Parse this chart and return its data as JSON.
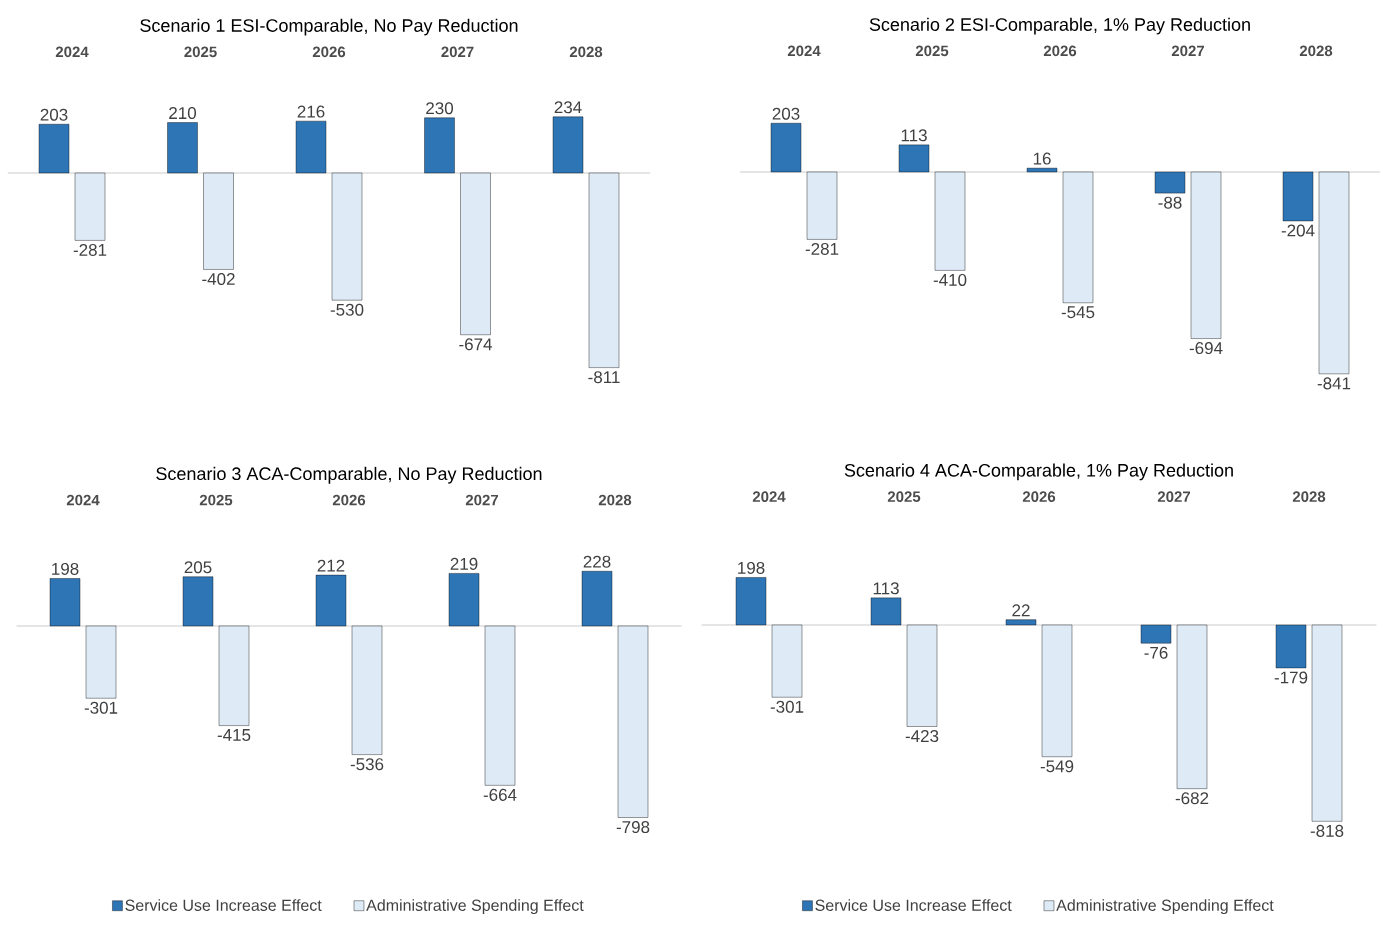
{
  "chart_data": [
    {
      "type": "bar",
      "title": "Scenario 1 ESI-Comparable, No Pay Reduction",
      "categories": [
        "2024",
        "2025",
        "2026",
        "2027",
        "2028"
      ],
      "data_labels": true,
      "series": [
        {
          "color": "#2e75b6",
          "values": [
            203,
            210,
            216,
            230,
            234
          ]
        },
        {
          "color": "#deebf7",
          "values": [
            -281,
            -402,
            -530,
            -674,
            -811
          ]
        }
      ]
    },
    {
      "type": "bar",
      "title": "Scenario 2 ESI-Comparable, 1% Pay Reduction",
      "categories": [
        "2024",
        "2025",
        "2026",
        "2027",
        "2028"
      ],
      "data_labels": true,
      "series": [
        {
          "color": "#2e75b6",
          "values": [
            203,
            113,
            16,
            -88,
            -204
          ]
        },
        {
          "color": "#deebf7",
          "values": [
            -281,
            -410,
            -545,
            -694,
            -841
          ]
        }
      ]
    },
    {
      "type": "bar",
      "title": "Scenario 3 ACA-Comparable, No Pay Reduction",
      "categories": [
        "2024",
        "2025",
        "2026",
        "2027",
        "2028"
      ],
      "data_labels": true,
      "legend": "bottom",
      "series": [
        {
          "name": "Service Use Increase Effect",
          "color": "#2e75b6",
          "values": [
            198,
            205,
            212,
            219,
            228
          ]
        },
        {
          "name": "Administrative Spending Effect",
          "color": "#deebf7",
          "values": [
            -301,
            -415,
            -536,
            -664,
            -798
          ]
        }
      ]
    },
    {
      "type": "bar",
      "title": "Scenario 4 ACA-Comparable, 1% Pay Reduction",
      "categories": [
        "2024",
        "2025",
        "2026",
        "2027",
        "2028"
      ],
      "data_labels": true,
      "legend": "bottom",
      "series": [
        {
          "name": "Service Use Increase Effect",
          "color": "#2e75b6",
          "values": [
            198,
            113,
            22,
            -76,
            -179
          ]
        },
        {
          "name": "Administrative Spending Effect",
          "color": "#deebf7",
          "values": [
            -301,
            -423,
            -549,
            -682,
            -818
          ]
        }
      ]
    }
  ]
}
